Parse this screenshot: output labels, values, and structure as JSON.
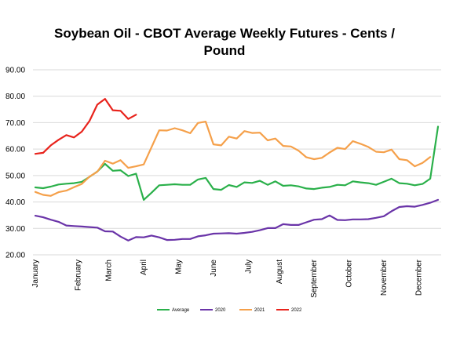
{
  "chart_data": {
    "type": "line",
    "title": "Soybean Oil - CBOT Average Weekly Futures - Cents / Pound",
    "title_lines": [
      "Soybean Oil - CBOT Average Weekly Futures - Cents /",
      "Pound"
    ],
    "xlabel": "",
    "ylabel": "",
    "ylim": [
      20,
      90
    ],
    "yticks": [
      "20.00",
      "30.00",
      "40.00",
      "50.00",
      "60.00",
      "70.00",
      "80.00",
      "90.00"
    ],
    "months": [
      {
        "label": "January",
        "week": 0
      },
      {
        "label": "February",
        "week": 5.5
      },
      {
        "label": "March",
        "week": 9.5
      },
      {
        "label": "April",
        "week": 14
      },
      {
        "label": "May",
        "week": 18.5
      },
      {
        "label": "June",
        "week": 23
      },
      {
        "label": "July",
        "week": 27.5
      },
      {
        "label": "August",
        "week": 31.5
      },
      {
        "label": "September",
        "week": 36
      },
      {
        "label": "October",
        "week": 40.5
      },
      {
        "label": "November",
        "week": 45
      },
      {
        "label": "December",
        "week": 49.5
      }
    ],
    "grid": true,
    "legend_position": "bottom",
    "series": [
      {
        "name": "Average",
        "color": "#2ab04a",
        "values": [
          45.5,
          45.2,
          45.8,
          46.6,
          46.9,
          47.1,
          47.6,
          49.5,
          51.5,
          54.4,
          51.8,
          52.0,
          49.8,
          50.7,
          40.8,
          43.5,
          46.3,
          46.5,
          46.7,
          46.5,
          46.5,
          48.5,
          49.1,
          44.9,
          44.6,
          46.4,
          45.7,
          47.4,
          47.2,
          48.0,
          46.5,
          47.8,
          46.1,
          46.3,
          45.9,
          45.1,
          44.9,
          45.4,
          45.7,
          46.5,
          46.3,
          47.8,
          47.4,
          47.1,
          46.5,
          47.6,
          48.8,
          47.1,
          46.9,
          46.3,
          46.8,
          48.8,
          68.5
        ]
      },
      {
        "name": "2020",
        "color": "#6a34a8",
        "values": [
          34.8,
          34.2,
          33.3,
          32.5,
          31.1,
          30.9,
          30.7,
          30.5,
          30.3,
          28.9,
          28.8,
          26.9,
          25.4,
          26.7,
          26.6,
          27.3,
          26.6,
          25.6,
          25.7,
          26.0,
          26.0,
          27.0,
          27.4,
          28.0,
          28.1,
          28.2,
          28.0,
          28.3,
          28.7,
          29.3,
          30.1,
          30.1,
          31.6,
          31.3,
          31.3,
          32.3,
          33.3,
          33.5,
          34.9,
          33.2,
          33.1,
          33.4,
          33.4,
          33.5,
          34.0,
          34.6,
          36.5,
          38.1,
          38.4,
          38.2,
          38.9,
          39.7,
          40.8
        ]
      },
      {
        "name": "2021",
        "color": "#f5a04a",
        "values": [
          43.8,
          42.7,
          42.3,
          43.7,
          44.3,
          45.6,
          46.8,
          49.6,
          51.4,
          55.6,
          54.5,
          55.8,
          52.9,
          53.5,
          54.2,
          60.7,
          67.1,
          67.0,
          67.9,
          67.1,
          66.0,
          69.9,
          70.4,
          61.8,
          61.4,
          64.7,
          64.0,
          66.8,
          66.1,
          66.2,
          63.3,
          64.0,
          61.2,
          61.0,
          59.4,
          56.9,
          56.2,
          56.7,
          58.7,
          60.5,
          60.0,
          63.0,
          62.0,
          60.8,
          59.0,
          58.8,
          59.8,
          56.2,
          55.8,
          53.5,
          54.8,
          57.0,
          null
        ]
      },
      {
        "name": "2022",
        "color": "#e8231c",
        "values": [
          58.2,
          58.6,
          61.4,
          63.5,
          65.3,
          64.4,
          66.6,
          70.7,
          76.8,
          79.0,
          74.7,
          74.5,
          71.4,
          73.0,
          null,
          null,
          null,
          null,
          null,
          null,
          null,
          null,
          null,
          null,
          null,
          null,
          null,
          null,
          null,
          null,
          null,
          null,
          null,
          null,
          null,
          null,
          null,
          null,
          null,
          null,
          null,
          null,
          null,
          null,
          null,
          null,
          null,
          null,
          null,
          null,
          null,
          null,
          null
        ]
      }
    ]
  }
}
